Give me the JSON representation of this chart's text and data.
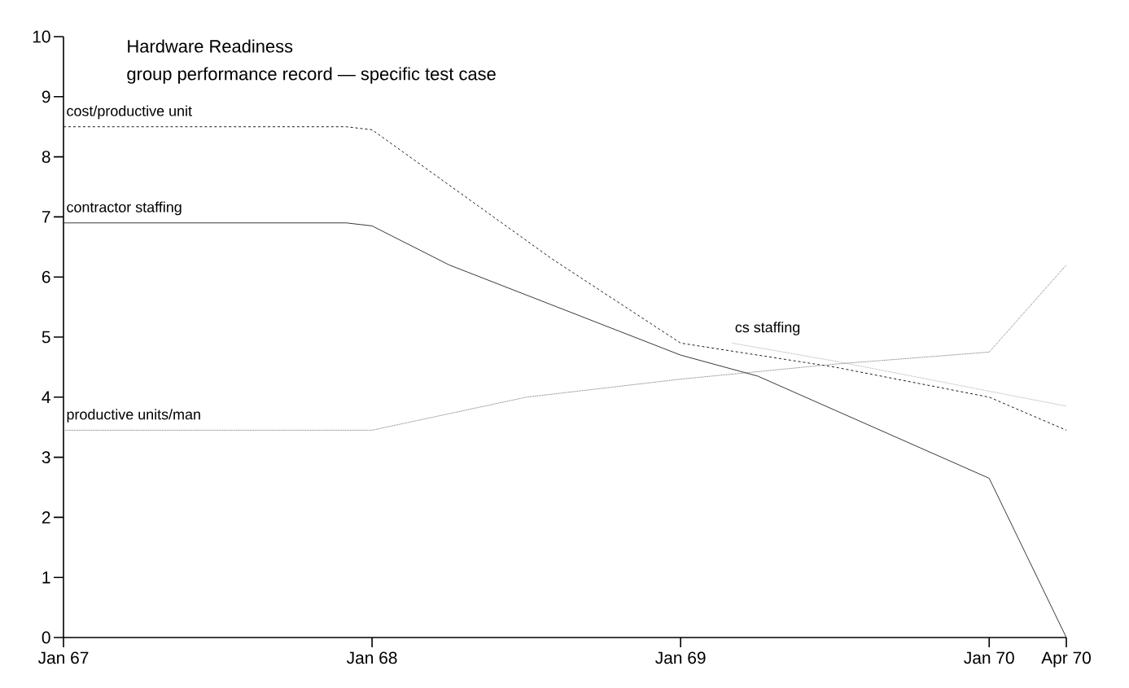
{
  "chart_data": {
    "type": "line",
    "title": "Hardware Readiness",
    "subtitle": "group performance record — specific test case",
    "xlim": [
      "1967-01",
      "1970-04"
    ],
    "xticks": [
      {
        "value": "1967-01",
        "label": "Jan 67"
      },
      {
        "value": "1968-01",
        "label": "Jan 68"
      },
      {
        "value": "1969-01",
        "label": "Jan 69"
      },
      {
        "value": "1970-01",
        "label": "Jan 70"
      },
      {
        "value": "1970-04",
        "label": "Apr 70"
      }
    ],
    "ylim": [
      0,
      10
    ],
    "yticks": [
      0,
      1,
      2,
      3,
      4,
      5,
      6,
      7,
      8,
      9,
      10
    ],
    "series": [
      {
        "name": "cost/productive unit",
        "color": "#000000",
        "line_style": "dashed",
        "x": [
          "1967-01",
          "1967-12",
          "1968-01",
          "1968-08",
          "1969-01",
          "1969-04",
          "1969-07",
          "1970-01",
          "1970-04"
        ],
        "values": [
          8.5,
          8.5,
          8.45,
          6.3,
          4.9,
          4.7,
          4.5,
          4.0,
          3.45
        ]
      },
      {
        "name": "contractor staffing",
        "color": "#222222",
        "line_style": "solid",
        "x": [
          "1967-01",
          "1967-12",
          "1968-01",
          "1968-04",
          "1969-01",
          "1969-04",
          "1970-01",
          "1970-04"
        ],
        "values": [
          6.9,
          6.9,
          6.85,
          6.2,
          4.7,
          4.35,
          2.65,
          0
        ]
      },
      {
        "name": "cs staffing",
        "color": "#999999",
        "line_style": "dotted",
        "x": [
          "1969-03",
          "1969-07",
          "1970-01",
          "1970-04"
        ],
        "values": [
          4.9,
          4.6,
          4.1,
          3.85
        ]
      },
      {
        "name": "productive units/man",
        "color": "#555555",
        "line_style": "dotted",
        "x": [
          "1967-01",
          "1968-01",
          "1968-07",
          "1969-01",
          "1969-07",
          "1970-01",
          "1970-04"
        ],
        "values": [
          3.45,
          3.45,
          4.0,
          4.3,
          4.55,
          4.75,
          6.2
        ]
      }
    ]
  }
}
